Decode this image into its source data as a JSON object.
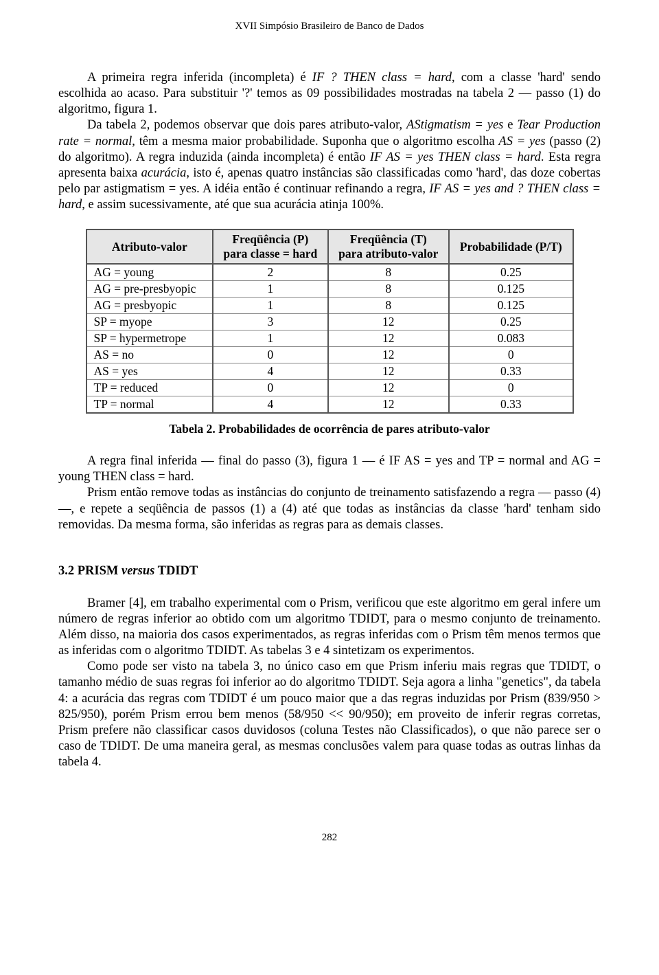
{
  "page_header": "XVII Simpósio Brasileiro de Banco de Dados",
  "para1_a": "A primeira regra inferida (incompleta) é ",
  "para1_b": "IF ? THEN class = hard",
  "para1_c": ", com a classe 'hard' sendo escolhida ao acaso. Para substituir '?' temos as 09 possibilidades mostradas na tabela 2 — passo (1) do algoritmo, figura 1.",
  "para2_a": "Da tabela 2, podemos observar que dois pares atributo-valor, ",
  "para2_b": "AStigmatism = yes",
  "para2_c": " e ",
  "para2_d": "Tear Production rate = normal",
  "para2_e": ", têm a mesma maior probabilidade. Suponha que o algoritmo escolha ",
  "para2_f": "AS = yes",
  "para2_g": " (passo (2) do algoritmo). A regra induzida (ainda incompleta) é então ",
  "para2_h": "IF AS = yes THEN class = hard",
  "para2_i": ". Esta regra apresenta baixa ",
  "para2_j": "acurácia",
  "para2_k": ", isto é, apenas quatro instâncias são classificadas como 'hard', das doze cobertas pelo par astigmatism = yes. A idéia então é continuar refinando a regra, ",
  "para2_l": "IF AS = yes and ? THEN class = hard",
  "para2_m": ", e assim sucessivamente, até que sua acurácia atinja 100%.",
  "table": {
    "type": "table",
    "header_bg": "#e6e6e6",
    "border_color": "#555555",
    "columns": [
      "Atributo-valor",
      "Freqüência (P)\npara classe = hard",
      "Freqüência (T)\npara atributo-valor",
      "Probabilidade (P/T)"
    ],
    "rows": [
      [
        "AG = young",
        "2",
        "8",
        "0.25"
      ],
      [
        "AG = pre-presbyopic",
        "1",
        "8",
        "0.125"
      ],
      [
        "AG = presbyopic",
        "1",
        "8",
        "0.125"
      ],
      [
        "SP  = myope",
        "3",
        "12",
        "0.25"
      ],
      [
        "SP  = hypermetrope",
        "1",
        "12",
        "0.083"
      ],
      [
        "AS  = no",
        "0",
        "12",
        "0"
      ],
      [
        "AS  = yes",
        "4",
        "12",
        "0.33"
      ],
      [
        "TP  = reduced",
        "0",
        "12",
        "0"
      ],
      [
        "TP  = normal",
        "4",
        "12",
        "0.33"
      ]
    ]
  },
  "table_caption": "Tabela 2. Probabilidades de ocorrência de pares atributo-valor",
  "para3": "A regra final inferida — final do passo (3), figura 1 — é IF AS = yes and TP = normal and AG = young THEN class = hard.",
  "para4": "Prism então remove todas as instâncias do conjunto de treinamento satisfazendo a regra — passo (4) —, e repete a seqüência de passos (1) a (4) até que todas as instâncias da classe 'hard' tenham sido removidas. Da mesma forma, são inferidas as regras para as demais classes.",
  "section_heading_a": "3.2 PRISM ",
  "section_heading_b": "versus",
  "section_heading_c": " TDIDT",
  "para5": "Bramer [4], em trabalho experimental com o Prism, verificou que este algoritmo em geral infere um número de regras inferior ao obtido com um algoritmo TDIDT, para o mesmo conjunto de treinamento. Além disso, na maioria dos casos experimentados, as regras inferidas com o Prism têm menos termos que as inferidas com o algoritmo TDIDT. As tabelas 3 e 4 sintetizam os experimentos.",
  "para6": "Como pode ser visto na tabela 3, no único caso em que Prism inferiu mais regras que TDIDT, o tamanho médio de suas regras foi inferior ao do algoritmo TDIDT. Seja agora a linha \"genetics\", da tabela 4: a acurácia das regras com TDIDT é um pouco maior que a das regras induzidas por Prism (839/950 > 825/950), porém Prism errou bem menos (58/950 << 90/950); em proveito de inferir regras corretas, Prism prefere não classificar casos duvidosos (coluna Testes não Classificados), o que não parece ser o caso de TDIDT. De uma maneira geral, as mesmas conclusões valem para quase todas as outras linhas da tabela 4.",
  "page_number": "282"
}
